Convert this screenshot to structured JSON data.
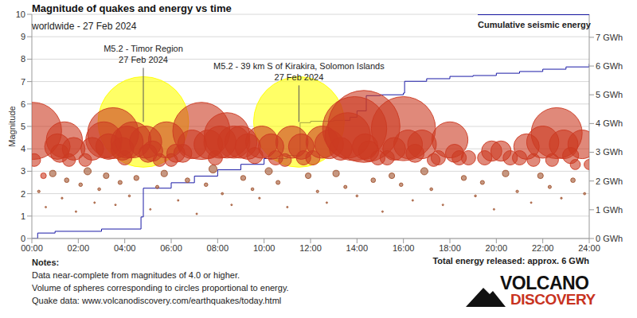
{
  "chart_data": {
    "type": "scatter",
    "title": "Magnitude of quakes and energy vs time",
    "subtitle": "worldwide - 27 Feb 2024",
    "y_label": "Magnitude",
    "xlim": [
      0,
      24
    ],
    "xticks": [
      {
        "value": 0,
        "label": "00:00"
      },
      {
        "value": 2,
        "label": "02:00"
      },
      {
        "value": 4,
        "label": "04:00"
      },
      {
        "value": 6,
        "label": "06:00"
      },
      {
        "value": 8,
        "label": "08:00"
      },
      {
        "value": 10,
        "label": "10:00"
      },
      {
        "value": 12,
        "label": "12:00"
      },
      {
        "value": 14,
        "label": "14:00"
      },
      {
        "value": 16,
        "label": "16:00"
      },
      {
        "value": 18,
        "label": "18:00"
      },
      {
        "value": 20,
        "label": "20:00"
      },
      {
        "value": 22,
        "label": "22:00"
      },
      {
        "value": 24,
        "label": "24:00"
      }
    ],
    "ylim": [
      0,
      10
    ],
    "yticks": [
      0,
      1,
      2,
      3,
      4,
      5,
      6,
      7,
      8,
      9,
      10
    ],
    "y2lim": [
      0,
      7.8
    ],
    "y2ticks": [
      {
        "value": 0,
        "label": "0 GWh"
      },
      {
        "value": 1,
        "label": "1 GWh"
      },
      {
        "value": 2,
        "label": "2 GWh"
      },
      {
        "value": 3,
        "label": "3 GWh"
      },
      {
        "value": 4,
        "label": "4 GWh"
      },
      {
        "value": 5,
        "label": "5 GWh"
      },
      {
        "value": 6,
        "label": "6 GWh"
      },
      {
        "value": 7,
        "label": "7 GWh"
      }
    ],
    "grid": true,
    "legend": "top-right",
    "series": [
      {
        "type": "scatter",
        "marker": "circle",
        "color": "#a0522d",
        "x": [
          0.3,
          0.6,
          0.9,
          1.3,
          1.5,
          1.9,
          2.1,
          2.4,
          2.7,
          2.9,
          3.2,
          3.6,
          3.8,
          4.2,
          4.5,
          5.1,
          5.4,
          5.7,
          6.3,
          6.7,
          7.1,
          7.5,
          7.8,
          8.2,
          8.6,
          9.1,
          9.5,
          9.8,
          10.2,
          10.6,
          11.0,
          11.9,
          12.3,
          12.7,
          13.1,
          13.5,
          14.0,
          14.7,
          15.1,
          15.5,
          15.9,
          16.4,
          16.9,
          17.2,
          17.7,
          18.6,
          19.1,
          19.4,
          19.9,
          20.4,
          20.9,
          21.5,
          21.9,
          22.3,
          22.8,
          23.3,
          23.8
        ],
        "values": [
          2.1,
          1.4,
          2.9,
          1.8,
          2.6,
          1.2,
          2.4,
          3.0,
          1.6,
          2.2,
          2.8,
          1.5,
          2.5,
          1.9,
          2.7,
          1.3,
          2.3,
          2.9,
          1.7,
          2.6,
          1.1,
          2.4,
          3.1,
          2.0,
          1.5,
          2.7,
          2.2,
          1.8,
          3.0,
          2.5,
          1.4,
          2.8,
          2.1,
          1.6,
          2.9,
          2.3,
          1.9,
          2.6,
          1.2,
          2.8,
          2.4,
          1.7,
          3.0,
          2.2,
          1.5,
          2.7,
          1.9,
          2.5,
          1.3,
          2.9,
          2.1,
          1.6,
          2.8,
          2.3,
          1.8,
          2.6,
          2.0
        ]
      },
      {
        "type": "scatter",
        "marker": "circle",
        "color": "#ffff00",
        "x": [
          4.8,
          11.5
        ],
        "values": [
          5.2,
          5.2
        ]
      },
      {
        "type": "scatter",
        "marker": "circle",
        "color": "#cc3a22",
        "x": [
          0.05,
          0.1,
          0.5,
          1.1,
          1.2,
          1.4,
          1.6,
          1.8,
          2.3,
          2.6,
          3.1,
          3.3,
          3.5,
          3.9,
          4.0,
          4.1,
          4.35,
          4.9,
          5.0,
          5.2,
          5.5,
          5.8,
          6.0,
          6.2,
          6.5,
          6.9,
          7.3,
          7.6,
          7.9,
          8.1,
          8.4,
          8.7,
          9.0,
          9.3,
          9.6,
          9.9,
          10.3,
          10.5,
          10.9,
          11.2,
          11.6,
          11.7,
          12.1,
          12.5,
          12.8,
          13.3,
          13.6,
          13.9,
          14.3,
          14.35,
          14.5,
          14.9,
          15.3,
          15.6,
          16.0,
          16.2,
          16.5,
          16.8,
          17.3,
          17.5,
          18.0,
          18.2,
          18.4,
          18.8,
          19.5,
          19.8,
          20.2,
          20.6,
          21.0,
          21.3,
          21.6,
          22.0,
          22.4,
          22.6,
          22.9,
          23.2,
          23.4,
          23.7,
          24.0
        ],
        "values": [
          4.8,
          3.5,
          2.8,
          4.1,
          3.8,
          4.4,
          3.5,
          4.0,
          3.5,
          4.0,
          4.4,
          4.1,
          4.7,
          4.0,
          3.6,
          4.3,
          4.4,
          4.3,
          3.8,
          3.9,
          3.5,
          4.4,
          3.5,
          3.8,
          3.8,
          4.2,
          4.8,
          4.2,
          3.6,
          4.3,
          4.6,
          4.3,
          4.3,
          4.1,
          3.7,
          4.3,
          4.1,
          3.6,
          3.5,
          4.3,
          4.1,
          3.6,
          3.6,
          4.3,
          4.2,
          4.0,
          4.6,
          4.9,
          5.0,
          4.1,
          3.9,
          3.6,
          3.6,
          4.0,
          4.9,
          4.2,
          3.8,
          4.2,
          3.5,
          3.6,
          4.4,
          3.8,
          3.6,
          3.6,
          3.6,
          3.9,
          3.9,
          3.6,
          3.6,
          4.1,
          3.5,
          4.3,
          3.5,
          4.7,
          4.2,
          3.7,
          3.3,
          4.2,
          3.3
        ]
      },
      {
        "name": "Cumulative seismic energy",
        "type": "line",
        "line_style": "step",
        "axis": "y2",
        "color": "#1a1aa6",
        "x": [
          0,
          0.25,
          1,
          3,
          4.7,
          4.8,
          6,
          7,
          8,
          9,
          10,
          11,
          11.5,
          11.55,
          12,
          13,
          13.7,
          14,
          14.4,
          15,
          16,
          16.05,
          17,
          18,
          19,
          20,
          21,
          22,
          23,
          24
        ],
        "values": [
          0,
          0.19,
          0.25,
          0.33,
          0.75,
          1.75,
          1.94,
          2.17,
          2.39,
          2.58,
          2.78,
          2.89,
          3.0,
          4.03,
          4.08,
          4.11,
          4.22,
          4.44,
          4.97,
          5.0,
          5.06,
          5.47,
          5.56,
          5.64,
          5.67,
          5.75,
          5.81,
          5.89,
          5.97,
          6.08
        ]
      }
    ],
    "annotations": [
      {
        "text": "M5.2 - Timor Region",
        "date": "27 Feb 2024",
        "x": 4.8,
        "y": 5.2
      },
      {
        "text": "M5.2 - 39 km S of Kirakira, Solomon Islands",
        "date": "27 Feb 2024",
        "x": 11.5,
        "y": 5.2
      }
    ],
    "notes": {
      "title": "Notes:",
      "lines": [
        "Data near-complete from magnitudes of 4.0 or higher.",
        "Volume of spheres corresponding to circles proportional to energy.",
        "Quake data: www.volcanodiscovery.com/earthquakes/today.html"
      ]
    },
    "total_energy": "Total energy released: approx. 6 GWh",
    "logo": [
      "VOLCANO",
      "DISCOVERY"
    ]
  }
}
